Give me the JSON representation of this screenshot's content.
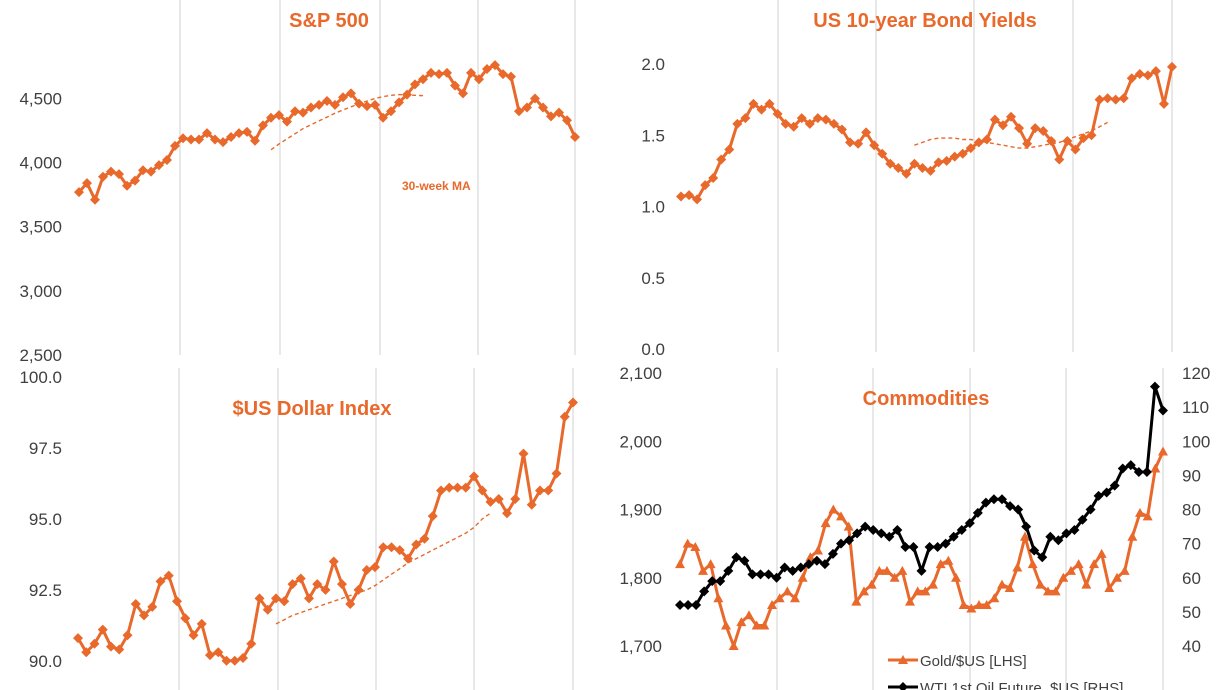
{
  "colors": {
    "orange": "#e8692b",
    "black": "#000000",
    "grid": "#d0d0d0"
  },
  "chart_data": [
    {
      "id": "sp500",
      "type": "line",
      "title": "S&P 500",
      "annotation": "30-week MA",
      "ylim": [
        2500,
        4800
      ],
      "yticks": [
        "2,500",
        "3,000",
        "3,500",
        "4,000",
        "4,500"
      ],
      "ytick_values": [
        2500,
        3000,
        3500,
        4000,
        4500
      ],
      "grid": "vertical",
      "series": [
        {
          "values": [
            3770,
            3840,
            3710,
            3890,
            3930,
            3910,
            3820,
            3860,
            3940,
            3930,
            3980,
            4020,
            4130,
            4190,
            4180,
            4180,
            4230,
            4180,
            4160,
            4200,
            4230,
            4240,
            4170,
            4290,
            4350,
            4370,
            4320,
            4400,
            4390,
            4430,
            4450,
            4480,
            4450,
            4510,
            4540,
            4460,
            4440,
            4450,
            4350,
            4400,
            4470,
            4530,
            4610,
            4650,
            4700,
            4690,
            4700,
            4600,
            4540,
            4700,
            4650,
            4730,
            4760,
            4690,
            4670,
            4400,
            4430,
            4500,
            4430,
            4360,
            4390,
            4330,
            4200
          ]
        },
        {
          "style": "dashed",
          "x_start": 24,
          "values": [
            4100,
            4145,
            4185,
            4225,
            4265,
            4295,
            4325,
            4355,
            4385,
            4410,
            4435,
            4458,
            4480,
            4500,
            4515,
            4525,
            4530,
            4528,
            4525,
            4522
          ]
        }
      ]
    },
    {
      "id": "us10y",
      "type": "line",
      "title": "US 10-year Bond Yields",
      "ylim": [
        0.0,
        2.0
      ],
      "yticks": [
        "0.0",
        "0.5",
        "1.0",
        "1.5",
        "2.0"
      ],
      "ytick_values": [
        0.0,
        0.5,
        1.0,
        1.5,
        2.0
      ],
      "grid": "vertical",
      "series": [
        {
          "values": [
            1.07,
            1.08,
            1.05,
            1.15,
            1.2,
            1.33,
            1.4,
            1.58,
            1.62,
            1.72,
            1.68,
            1.72,
            1.65,
            1.58,
            1.56,
            1.62,
            1.58,
            1.62,
            1.61,
            1.58,
            1.54,
            1.45,
            1.44,
            1.52,
            1.43,
            1.37,
            1.3,
            1.27,
            1.23,
            1.3,
            1.27,
            1.25,
            1.31,
            1.32,
            1.35,
            1.37,
            1.41,
            1.45,
            1.47,
            1.61,
            1.57,
            1.63,
            1.55,
            1.44,
            1.55,
            1.53,
            1.46,
            1.33,
            1.46,
            1.4,
            1.48,
            1.5,
            1.75,
            1.76,
            1.75,
            1.76,
            1.9,
            1.93,
            1.92,
            1.95,
            1.72,
            1.98
          ]
        },
        {
          "style": "dashed",
          "x_start": 29,
          "values": [
            1.43,
            1.45,
            1.47,
            1.48,
            1.48,
            1.48,
            1.47,
            1.47,
            1.46,
            1.45,
            1.44,
            1.43,
            1.42,
            1.41,
            1.41,
            1.42,
            1.43,
            1.44,
            1.45,
            1.47,
            1.49,
            1.51,
            1.53,
            1.56,
            1.59
          ]
        }
      ]
    },
    {
      "id": "usd",
      "type": "line",
      "title": "$US Dollar Index",
      "ylim": [
        89.5,
        100.0
      ],
      "yticks": [
        "90.0",
        "92.5",
        "95.0",
        "97.5",
        "100.0"
      ],
      "ytick_values": [
        90.0,
        92.5,
        95.0,
        97.5,
        100.0
      ],
      "grid": "vertical",
      "series": [
        {
          "values": [
            90.8,
            90.3,
            90.6,
            91.1,
            90.5,
            90.4,
            90.9,
            92.0,
            91.6,
            91.9,
            92.8,
            93.0,
            92.1,
            91.5,
            90.9,
            91.3,
            90.2,
            90.3,
            90.0,
            90.0,
            90.1,
            90.6,
            92.2,
            91.8,
            92.2,
            92.1,
            92.7,
            92.9,
            92.2,
            92.7,
            92.5,
            93.5,
            92.7,
            92.0,
            92.5,
            93.2,
            93.3,
            94.0,
            94.0,
            93.9,
            93.6,
            94.1,
            94.3,
            95.1,
            96.0,
            96.1,
            96.1,
            96.1,
            96.5,
            96.0,
            95.6,
            95.7,
            95.2,
            95.7,
            97.3,
            95.5,
            96.0,
            96.0,
            96.6,
            98.6,
            99.1
          ]
        },
        {
          "style": "dashed",
          "x_start": 24,
          "values": [
            91.3,
            91.45,
            91.6,
            91.7,
            91.8,
            91.9,
            92.0,
            92.1,
            92.2,
            92.3,
            92.4,
            92.5,
            92.65,
            92.85,
            93.05,
            93.25,
            93.45,
            93.6,
            93.75,
            93.9,
            94.05,
            94.2,
            94.35,
            94.5,
            94.7,
            95.0,
            95.2
          ]
        }
      ]
    },
    {
      "id": "commodities",
      "type": "line",
      "title": "Commodities",
      "ylim": [
        1700,
        2100
      ],
      "yticks": [
        "1,700",
        "1,800",
        "1,900",
        "2,000",
        "2,100"
      ],
      "ytick_values": [
        1700,
        1800,
        1900,
        2000,
        2100
      ],
      "y2lim": [
        40,
        120
      ],
      "y2ticks": [
        "40",
        "50",
        "60",
        "70",
        "80",
        "90",
        "100",
        "110",
        "120"
      ],
      "y2tick_values": [
        40,
        50,
        60,
        70,
        80,
        90,
        100,
        110,
        120
      ],
      "grid": "vertical",
      "series": [
        {
          "name": "Gold/$US [LHS]",
          "axis": "left",
          "marker": "triangle",
          "values": [
            1820,
            1850,
            1845,
            1810,
            1820,
            1770,
            1730,
            1700,
            1735,
            1745,
            1730,
            1730,
            1760,
            1770,
            1780,
            1770,
            1800,
            1830,
            1840,
            1880,
            1900,
            1890,
            1875,
            1765,
            1780,
            1790,
            1810,
            1810,
            1800,
            1810,
            1765,
            1780,
            1780,
            1790,
            1820,
            1825,
            1800,
            1760,
            1755,
            1760,
            1760,
            1770,
            1790,
            1785,
            1815,
            1860,
            1820,
            1790,
            1780,
            1780,
            1800,
            1810,
            1820,
            1790,
            1820,
            1835,
            1785,
            1800,
            1810,
            1860,
            1895,
            1890,
            1960,
            1985
          ]
        },
        {
          "name": "WTI 1st Oil Future, $US [RHS]",
          "axis": "right",
          "marker": "diamond",
          "values": [
            52,
            52,
            52,
            56,
            59,
            59,
            62,
            66,
            65,
            61,
            61,
            61,
            60,
            63,
            62,
            63,
            64,
            65,
            64,
            67,
            70,
            71,
            73,
            75,
            74,
            73,
            72,
            74,
            69,
            69,
            62,
            69,
            69,
            70,
            72,
            74,
            76,
            79,
            82,
            83,
            83,
            81,
            80,
            75,
            68,
            66,
            72,
            71,
            73,
            74,
            77,
            80,
            84,
            85,
            87,
            92,
            93,
            91,
            91,
            116,
            109
          ]
        }
      ],
      "legend": {
        "position": "bottom-right",
        "entries": [
          "Gold/$US [LHS]",
          "WTI 1st Oil Future, $US [RHS]"
        ]
      }
    }
  ]
}
